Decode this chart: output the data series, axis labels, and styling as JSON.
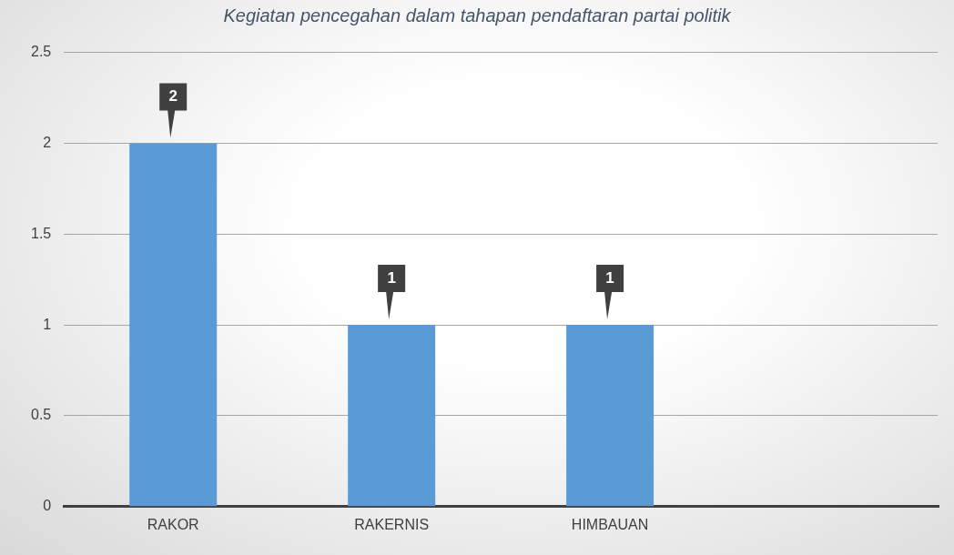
{
  "chart_data": {
    "type": "bar",
    "title": "Kegiatan pencegahan dalam tahapan pendaftaran partai politik",
    "categories": [
      "RAKOR",
      "RAKERNIS",
      "HIMBAUAN",
      null
    ],
    "values": [
      2,
      1,
      1,
      null
    ],
    "color": "#5b9bd5",
    "ylim": [
      0,
      2.5
    ],
    "yticks": [
      0,
      0.5,
      1,
      1.5,
      2,
      2.5
    ],
    "grid": "y",
    "data_labels": true
  }
}
